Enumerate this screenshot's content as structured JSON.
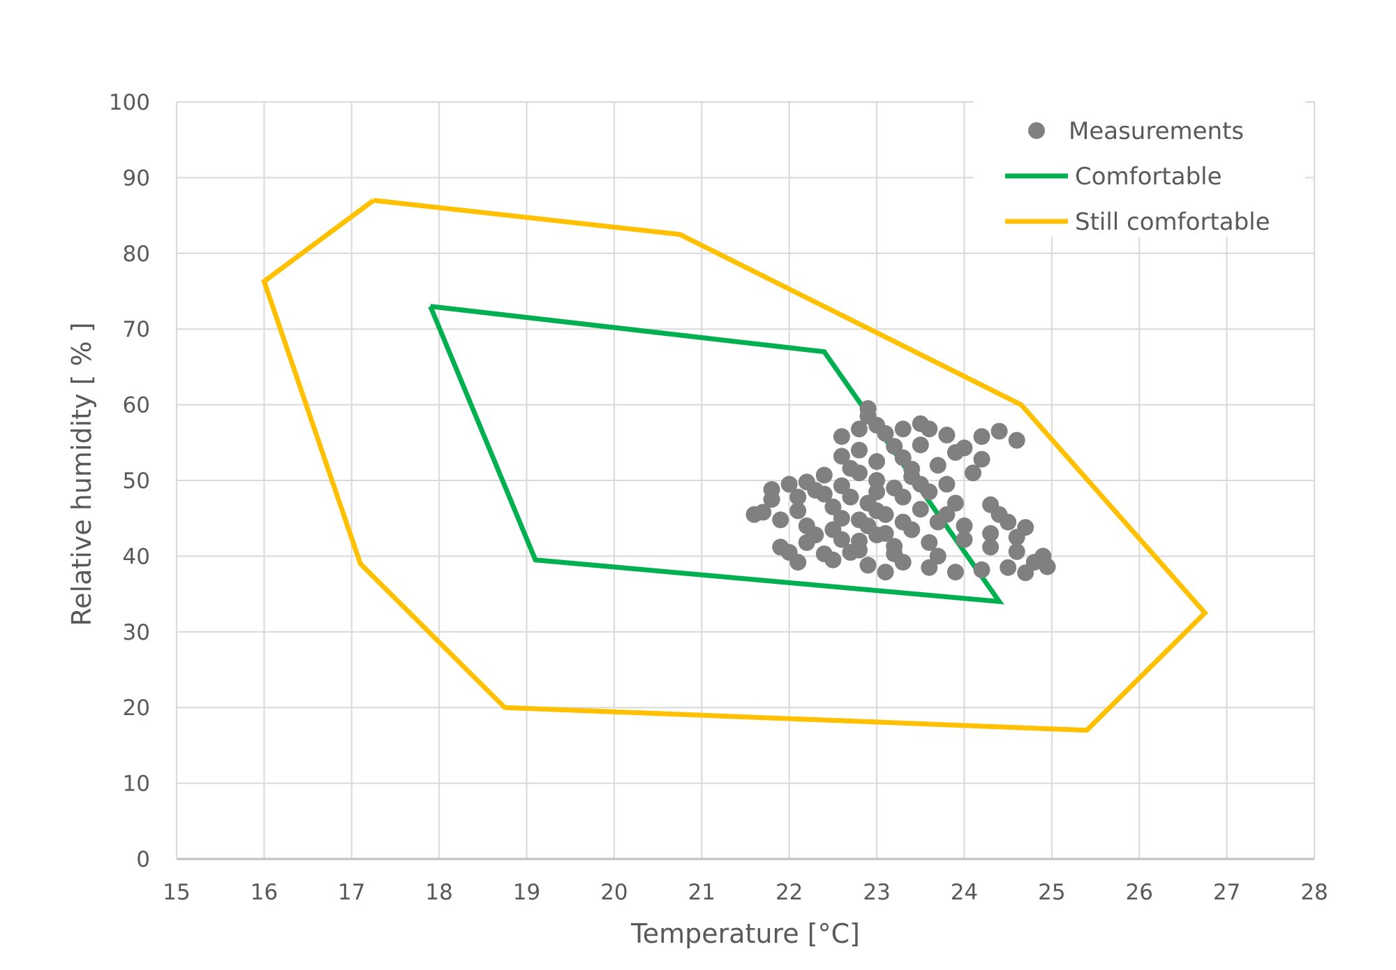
{
  "chart_data": {
    "type": "scatter",
    "title": "",
    "xlabel": "Temperature [°C]",
    "ylabel": "Relative humidity [ % ]",
    "xlim": [
      15,
      28
    ],
    "ylim": [
      0,
      100
    ],
    "xticks": [
      15,
      16,
      17,
      18,
      19,
      20,
      21,
      22,
      23,
      24,
      25,
      26,
      27,
      28
    ],
    "yticks": [
      0,
      10,
      20,
      30,
      40,
      50,
      60,
      70,
      80,
      90,
      100
    ],
    "grid": true,
    "legend_position": "top-right",
    "series": [
      {
        "name": "Measurements",
        "kind": "scatter",
        "color": "#808080",
        "points": [
          [
            22.9,
            59.5
          ],
          [
            22.9,
            58.5
          ],
          [
            22.6,
            55.8
          ],
          [
            22.8,
            56.8
          ],
          [
            23.0,
            57.3
          ],
          [
            23.1,
            56.2
          ],
          [
            23.3,
            56.8
          ],
          [
            23.5,
            57.5
          ],
          [
            23.6,
            56.8
          ],
          [
            23.8,
            56.0
          ],
          [
            24.2,
            55.8
          ],
          [
            24.4,
            56.5
          ],
          [
            24.6,
            55.3
          ],
          [
            24.0,
            54.3
          ],
          [
            23.5,
            54.7
          ],
          [
            23.2,
            54.5
          ],
          [
            22.8,
            54.0
          ],
          [
            22.6,
            53.2
          ],
          [
            23.9,
            53.7
          ],
          [
            24.2,
            52.8
          ],
          [
            24.1,
            51.0
          ],
          [
            23.7,
            52.0
          ],
          [
            23.3,
            53.0
          ],
          [
            23.0,
            52.5
          ],
          [
            22.7,
            51.6
          ],
          [
            22.4,
            50.7
          ],
          [
            22.2,
            49.8
          ],
          [
            22.0,
            49.5
          ],
          [
            21.8,
            48.8
          ],
          [
            21.8,
            47.5
          ],
          [
            22.1,
            47.8
          ],
          [
            22.3,
            48.7
          ],
          [
            22.6,
            49.3
          ],
          [
            23.0,
            50.0
          ],
          [
            23.4,
            50.5
          ],
          [
            23.8,
            49.5
          ],
          [
            23.6,
            48.5
          ],
          [
            23.3,
            47.8
          ],
          [
            22.9,
            47.0
          ],
          [
            22.5,
            46.5
          ],
          [
            22.1,
            46.0
          ],
          [
            21.7,
            45.8
          ],
          [
            21.6,
            45.5
          ],
          [
            21.9,
            44.8
          ],
          [
            22.2,
            44.0
          ],
          [
            22.5,
            43.5
          ],
          [
            22.8,
            44.8
          ],
          [
            23.1,
            45.5
          ],
          [
            23.5,
            46.2
          ],
          [
            23.9,
            47.0
          ],
          [
            24.3,
            46.8
          ],
          [
            24.4,
            45.5
          ],
          [
            24.5,
            44.5
          ],
          [
            24.7,
            43.8
          ],
          [
            24.6,
            42.5
          ],
          [
            24.3,
            43.0
          ],
          [
            24.0,
            44.0
          ],
          [
            23.7,
            44.5
          ],
          [
            23.4,
            43.5
          ],
          [
            23.0,
            42.8
          ],
          [
            22.6,
            42.2
          ],
          [
            22.2,
            41.8
          ],
          [
            21.9,
            41.2
          ],
          [
            22.0,
            40.5
          ],
          [
            22.4,
            40.3
          ],
          [
            22.8,
            40.8
          ],
          [
            23.2,
            41.3
          ],
          [
            23.6,
            41.8
          ],
          [
            24.0,
            42.2
          ],
          [
            24.3,
            41.2
          ],
          [
            24.6,
            40.6
          ],
          [
            24.9,
            40.0
          ],
          [
            24.8,
            39.2
          ],
          [
            24.5,
            38.5
          ],
          [
            24.2,
            38.2
          ],
          [
            23.9,
            37.9
          ],
          [
            23.6,
            38.5
          ],
          [
            23.3,
            39.2
          ],
          [
            22.9,
            38.8
          ],
          [
            22.5,
            39.5
          ],
          [
            22.1,
            39.2
          ],
          [
            23.1,
            37.9
          ],
          [
            24.7,
            37.8
          ],
          [
            24.95,
            38.6
          ],
          [
            23.0,
            46.0
          ],
          [
            22.9,
            44.0
          ],
          [
            23.2,
            49.0
          ],
          [
            22.8,
            51.0
          ],
          [
            23.4,
            51.5
          ],
          [
            22.7,
            47.8
          ],
          [
            23.1,
            43.0
          ],
          [
            22.8,
            42.0
          ],
          [
            23.3,
            44.5
          ],
          [
            22.6,
            45.0
          ],
          [
            23.0,
            48.5
          ],
          [
            23.5,
            49.5
          ],
          [
            22.4,
            48.2
          ],
          [
            23.8,
            45.5
          ],
          [
            22.3,
            42.8
          ],
          [
            23.2,
            40.3
          ],
          [
            23.7,
            40.0
          ],
          [
            22.7,
            40.5
          ]
        ]
      },
      {
        "name": "Comfortable",
        "kind": "line",
        "color": "#00B050",
        "points": [
          [
            17.9,
            73.0
          ],
          [
            22.4,
            67.0
          ],
          [
            24.4,
            34.0
          ],
          [
            19.1,
            39.5
          ],
          [
            17.9,
            73.0
          ]
        ]
      },
      {
        "name": "Still comfortable",
        "kind": "line",
        "color": "#FFC000",
        "points": [
          [
            17.25,
            87.0
          ],
          [
            20.75,
            82.5
          ],
          [
            24.65,
            60.0
          ],
          [
            26.75,
            32.5
          ],
          [
            25.4,
            17.0
          ],
          [
            18.75,
            20.0
          ],
          [
            17.1,
            39.0
          ],
          [
            16.0,
            76.3
          ],
          [
            17.25,
            87.0
          ]
        ]
      }
    ]
  }
}
